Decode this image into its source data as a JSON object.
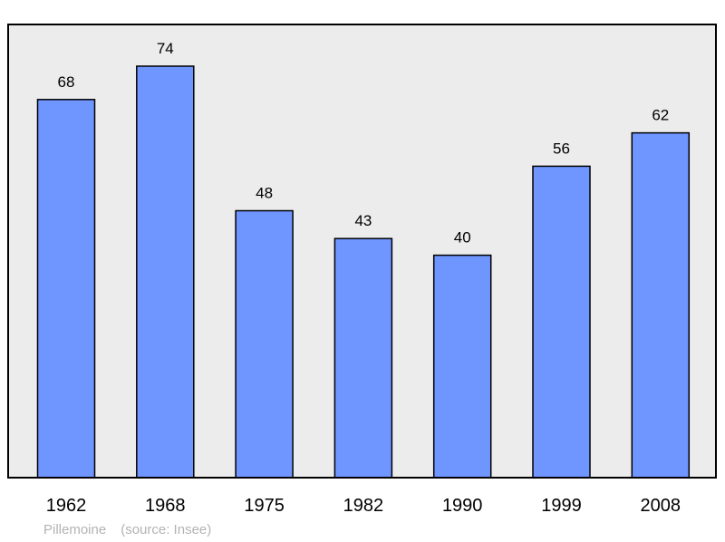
{
  "chart_data": {
    "type": "bar",
    "title": "",
    "xlabel": "",
    "ylabel": "",
    "categories": [
      "1962",
      "1968",
      "1975",
      "1982",
      "1990",
      "1999",
      "2008"
    ],
    "values": [
      68,
      74,
      48,
      43,
      40,
      56,
      62
    ],
    "ylim": [
      0,
      74
    ],
    "grid": false,
    "legend": "none",
    "bar_color": "#6f95ff",
    "plot_background": "#ececec"
  },
  "footer": {
    "place": "Pillemoine",
    "source": "(source: Insee)"
  }
}
